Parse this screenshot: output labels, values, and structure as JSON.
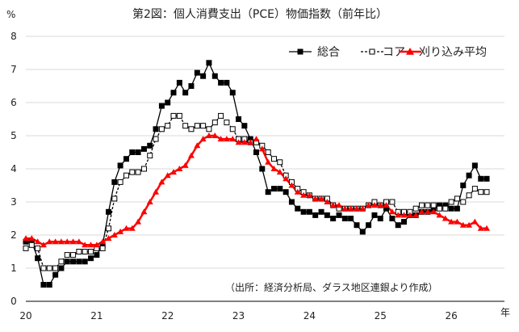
{
  "chart_data": {
    "type": "line",
    "title": "第2図：個人消費支出（PCE）物価指数（前年比）",
    "ylabel": "%",
    "xlabel": "年",
    "ylim": [
      0,
      8
    ],
    "yticks": [
      "0",
      "1",
      "2",
      "3",
      "4",
      "5",
      "6",
      "7",
      "8"
    ],
    "xlim": [
      2020.0,
      2026.75
    ],
    "xticks": [
      {
        "x": 2020,
        "label": "20"
      },
      {
        "x": 2021,
        "label": "21"
      },
      {
        "x": 2022,
        "label": "22"
      },
      {
        "x": 2023,
        "label": "23"
      },
      {
        "x": 2024,
        "label": "24"
      },
      {
        "x": 2025,
        "label": "25"
      },
      {
        "x": 2026,
        "label": "26"
      }
    ],
    "grid": {
      "horizontal": true,
      "vertical": false
    },
    "legend_position": "top-right",
    "note": "（出所：経済分析局、ダラス地区連銀より作成）",
    "series": [
      {
        "name": "総合",
        "color": "#000000",
        "marker": "filled-square",
        "x": [
          2020.0,
          2020.083,
          2020.167,
          2020.25,
          2020.333,
          2020.417,
          2020.5,
          2020.583,
          2020.667,
          2020.75,
          2020.833,
          2020.917,
          2021.0,
          2021.083,
          2021.167,
          2021.25,
          2021.333,
          2021.417,
          2021.5,
          2021.583,
          2021.667,
          2021.75,
          2021.833,
          2021.917,
          2022.0,
          2022.083,
          2022.167,
          2022.25,
          2022.333,
          2022.417,
          2022.5,
          2022.583,
          2022.667,
          2022.75,
          2022.833,
          2022.917,
          2023.0,
          2023.083,
          2023.167,
          2023.25,
          2023.333,
          2023.417,
          2023.5,
          2023.583,
          2023.667,
          2023.75,
          2023.833,
          2023.917,
          2024.0,
          2024.083,
          2024.167,
          2024.25,
          2024.333,
          2024.417,
          2024.5,
          2024.583,
          2024.667,
          2024.75,
          2024.833,
          2024.917,
          2025.0,
          2025.083,
          2025.167,
          2025.25,
          2025.333,
          2025.417,
          2025.5,
          2025.583,
          2025.667,
          2025.75,
          2025.833,
          2025.917,
          2026.0,
          2026.083,
          2026.167,
          2026.25,
          2026.333,
          2026.417,
          2026.5
        ],
        "values": [
          1.8,
          1.8,
          1.3,
          0.5,
          0.5,
          0.8,
          1.0,
          1.2,
          1.2,
          1.2,
          1.2,
          1.3,
          1.4,
          1.7,
          2.7,
          3.6,
          4.1,
          4.3,
          4.5,
          4.5,
          4.6,
          4.7,
          5.2,
          5.9,
          6.0,
          6.3,
          6.6,
          6.3,
          6.5,
          6.9,
          6.8,
          7.2,
          6.8,
          6.6,
          6.6,
          6.3,
          5.5,
          5.3,
          4.9,
          4.5,
          4.0,
          3.3,
          3.4,
          3.4,
          3.3,
          3.0,
          2.8,
          2.7,
          2.7,
          2.6,
          2.7,
          2.6,
          2.5,
          2.6,
          2.5,
          2.5,
          2.3,
          2.1,
          2.3,
          2.6,
          2.5,
          2.8,
          2.5,
          2.3,
          2.4,
          2.6,
          2.6,
          2.7,
          2.7,
          2.8,
          2.9,
          2.9,
          2.8,
          2.8,
          3.5,
          3.8,
          4.1,
          3.7,
          3.7
        ]
      },
      {
        "name": "コア",
        "color": "#000000",
        "marker": "open-square",
        "x": [
          2020.0,
          2020.083,
          2020.167,
          2020.25,
          2020.333,
          2020.417,
          2020.5,
          2020.583,
          2020.667,
          2020.75,
          2020.833,
          2020.917,
          2021.0,
          2021.083,
          2021.167,
          2021.25,
          2021.333,
          2021.417,
          2021.5,
          2021.583,
          2021.667,
          2021.75,
          2021.833,
          2021.917,
          2022.0,
          2022.083,
          2022.167,
          2022.25,
          2022.333,
          2022.417,
          2022.5,
          2022.583,
          2022.667,
          2022.75,
          2022.833,
          2022.917,
          2023.0,
          2023.083,
          2023.167,
          2023.25,
          2023.333,
          2023.417,
          2023.5,
          2023.583,
          2023.667,
          2023.75,
          2023.833,
          2023.917,
          2024.0,
          2024.083,
          2024.167,
          2024.25,
          2024.333,
          2024.417,
          2024.5,
          2024.583,
          2024.667,
          2024.75,
          2024.833,
          2024.917,
          2025.0,
          2025.083,
          2025.167,
          2025.25,
          2025.333,
          2025.417,
          2025.5,
          2025.583,
          2025.667,
          2025.75,
          2025.833,
          2025.917,
          2026.0,
          2026.083,
          2026.167,
          2026.25,
          2026.333,
          2026.417,
          2026.5
        ],
        "values": [
          1.6,
          1.7,
          1.6,
          1.0,
          1.0,
          1.0,
          1.2,
          1.4,
          1.4,
          1.5,
          1.5,
          1.5,
          1.6,
          1.6,
          2.2,
          3.1,
          3.6,
          3.8,
          3.9,
          3.9,
          4.0,
          4.4,
          4.9,
          5.2,
          5.3,
          5.6,
          5.6,
          5.3,
          5.2,
          5.3,
          5.3,
          5.2,
          5.4,
          5.6,
          5.4,
          5.2,
          4.9,
          4.9,
          4.8,
          4.8,
          4.7,
          4.5,
          4.3,
          4.2,
          3.8,
          3.6,
          3.4,
          3.3,
          3.2,
          3.1,
          3.1,
          3.1,
          2.9,
          2.8,
          2.8,
          2.8,
          2.8,
          2.8,
          2.9,
          3.0,
          2.9,
          3.0,
          3.0,
          2.7,
          2.7,
          2.7,
          2.8,
          2.9,
          2.9,
          2.9,
          2.8,
          2.8,
          3.0,
          3.1,
          3.0,
          3.2,
          3.4,
          3.3,
          3.3
        ]
      },
      {
        "name": "刈り込み平均",
        "color": "#ff0000",
        "marker": "filled-triangle",
        "x": [
          2020.0,
          2020.083,
          2020.167,
          2020.25,
          2020.333,
          2020.417,
          2020.5,
          2020.583,
          2020.667,
          2020.75,
          2020.833,
          2020.917,
          2021.0,
          2021.083,
          2021.167,
          2021.25,
          2021.333,
          2021.417,
          2021.5,
          2021.583,
          2021.667,
          2021.75,
          2021.833,
          2021.917,
          2022.0,
          2022.083,
          2022.167,
          2022.25,
          2022.333,
          2022.417,
          2022.5,
          2022.583,
          2022.667,
          2022.75,
          2022.833,
          2022.917,
          2023.0,
          2023.083,
          2023.167,
          2023.25,
          2023.333,
          2023.417,
          2023.5,
          2023.583,
          2023.667,
          2023.75,
          2023.833,
          2023.917,
          2024.0,
          2024.083,
          2024.167,
          2024.25,
          2024.333,
          2024.417,
          2024.5,
          2024.583,
          2024.667,
          2024.75,
          2024.833,
          2024.917,
          2025.0,
          2025.083,
          2025.167,
          2025.25,
          2025.333,
          2025.417,
          2025.5,
          2025.583,
          2025.667,
          2025.75,
          2025.833,
          2025.917,
          2026.0,
          2026.083,
          2026.167,
          2026.25,
          2026.333,
          2026.417,
          2026.5
        ],
        "values": [
          1.9,
          1.9,
          1.8,
          1.7,
          1.8,
          1.8,
          1.8,
          1.8,
          1.8,
          1.8,
          1.7,
          1.7,
          1.7,
          1.8,
          1.9,
          2.0,
          2.1,
          2.2,
          2.2,
          2.4,
          2.7,
          3.0,
          3.3,
          3.6,
          3.8,
          3.9,
          4.0,
          4.1,
          4.4,
          4.7,
          4.9,
          5.0,
          5.0,
          4.9,
          4.9,
          4.9,
          4.8,
          4.8,
          4.8,
          4.9,
          4.6,
          4.2,
          4.0,
          3.9,
          3.7,
          3.5,
          3.3,
          3.2,
          3.2,
          3.1,
          3.1,
          3.0,
          2.9,
          2.9,
          2.8,
          2.8,
          2.8,
          2.8,
          2.9,
          2.9,
          2.9,
          2.9,
          2.7,
          2.6,
          2.6,
          2.6,
          2.6,
          2.7,
          2.7,
          2.7,
          2.6,
          2.5,
          2.4,
          2.4,
          2.3,
          2.3,
          2.4,
          2.2,
          2.2
        ]
      }
    ]
  }
}
